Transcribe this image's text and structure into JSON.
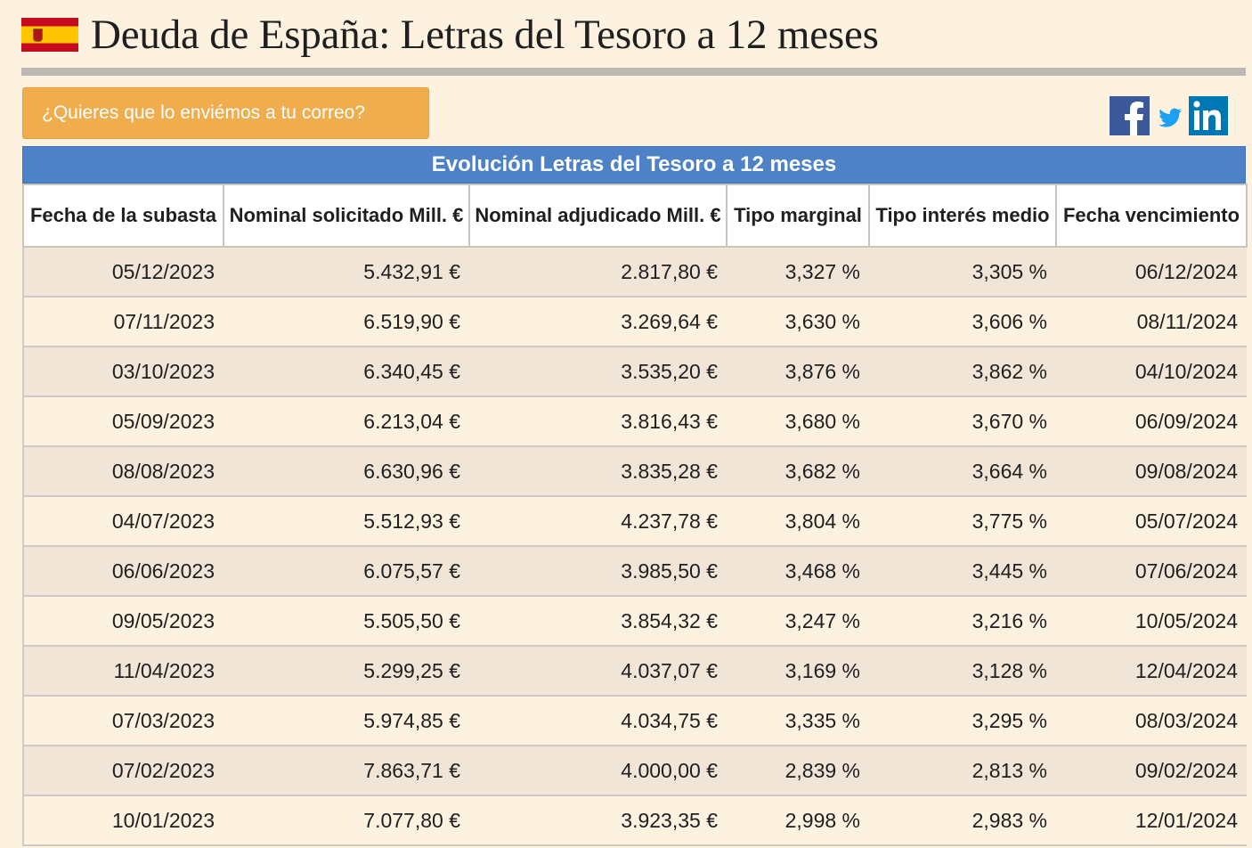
{
  "page": {
    "title": "Deuda de España: Letras del Tesoro a 12 meses",
    "flag_icon": "spain-flag-icon"
  },
  "toolbar": {
    "email_button_label": "¿Quieres que lo enviémos a tu correo?",
    "social": [
      {
        "name": "facebook",
        "icon": "facebook-icon",
        "color": "#3b5998"
      },
      {
        "name": "twitter",
        "icon": "twitter-icon",
        "color": "#1da1f2"
      },
      {
        "name": "linkedin",
        "icon": "linkedin-icon",
        "color": "#0077b5"
      }
    ]
  },
  "table": {
    "caption": "Evolución Letras del Tesoro a 12 meses",
    "headers": [
      "Fecha de la subasta",
      "Nominal solicitado Mill. €",
      "Nominal adjudicado Mill. €",
      "Tipo marginal",
      "Tipo interés medio",
      "Fecha vencimiento"
    ],
    "rows": [
      [
        "05/12/2023",
        "5.432,91 €",
        "2.817,80 €",
        "3,327 %",
        "3,305 %",
        "06/12/2024"
      ],
      [
        "07/11/2023",
        "6.519,90 €",
        "3.269,64 €",
        "3,630 %",
        "3,606 %",
        "08/11/2024"
      ],
      [
        "03/10/2023",
        "6.340,45 €",
        "3.535,20 €",
        "3,876 %",
        "3,862 %",
        "04/10/2024"
      ],
      [
        "05/09/2023",
        "6.213,04 €",
        "3.816,43 €",
        "3,680 %",
        "3,670 %",
        "06/09/2024"
      ],
      [
        "08/08/2023",
        "6.630,96 €",
        "3.835,28 €",
        "3,682 %",
        "3,664 %",
        "09/08/2024"
      ],
      [
        "04/07/2023",
        "5.512,93 €",
        "4.237,78 €",
        "3,804 %",
        "3,775 %",
        "05/07/2024"
      ],
      [
        "06/06/2023",
        "6.075,57 €",
        "3.985,50 €",
        "3,468 %",
        "3,445 %",
        "07/06/2024"
      ],
      [
        "09/05/2023",
        "5.505,50 €",
        "3.854,32 €",
        "3,247 %",
        "3,216 %",
        "10/05/2024"
      ],
      [
        "11/04/2023",
        "5.299,25 €",
        "4.037,07 €",
        "3,169 %",
        "3,128 %",
        "12/04/2024"
      ],
      [
        "07/03/2023",
        "5.974,85 €",
        "4.034,75 €",
        "3,335 %",
        "3,295 %",
        "08/03/2024"
      ],
      [
        "07/02/2023",
        "7.863,71 €",
        "4.000,00 €",
        "2,839 %",
        "2,813 %",
        "09/02/2024"
      ],
      [
        "10/01/2023",
        "7.077,80 €",
        "3.923,35 €",
        "2,998 %",
        "2,983 %",
        "12/01/2024"
      ]
    ]
  },
  "colors": {
    "page_background": "#fdf1e0",
    "caption_background": "#4d82c6",
    "button_background": "#f0ad4e",
    "odd_row_background": "#f0e5d6"
  }
}
